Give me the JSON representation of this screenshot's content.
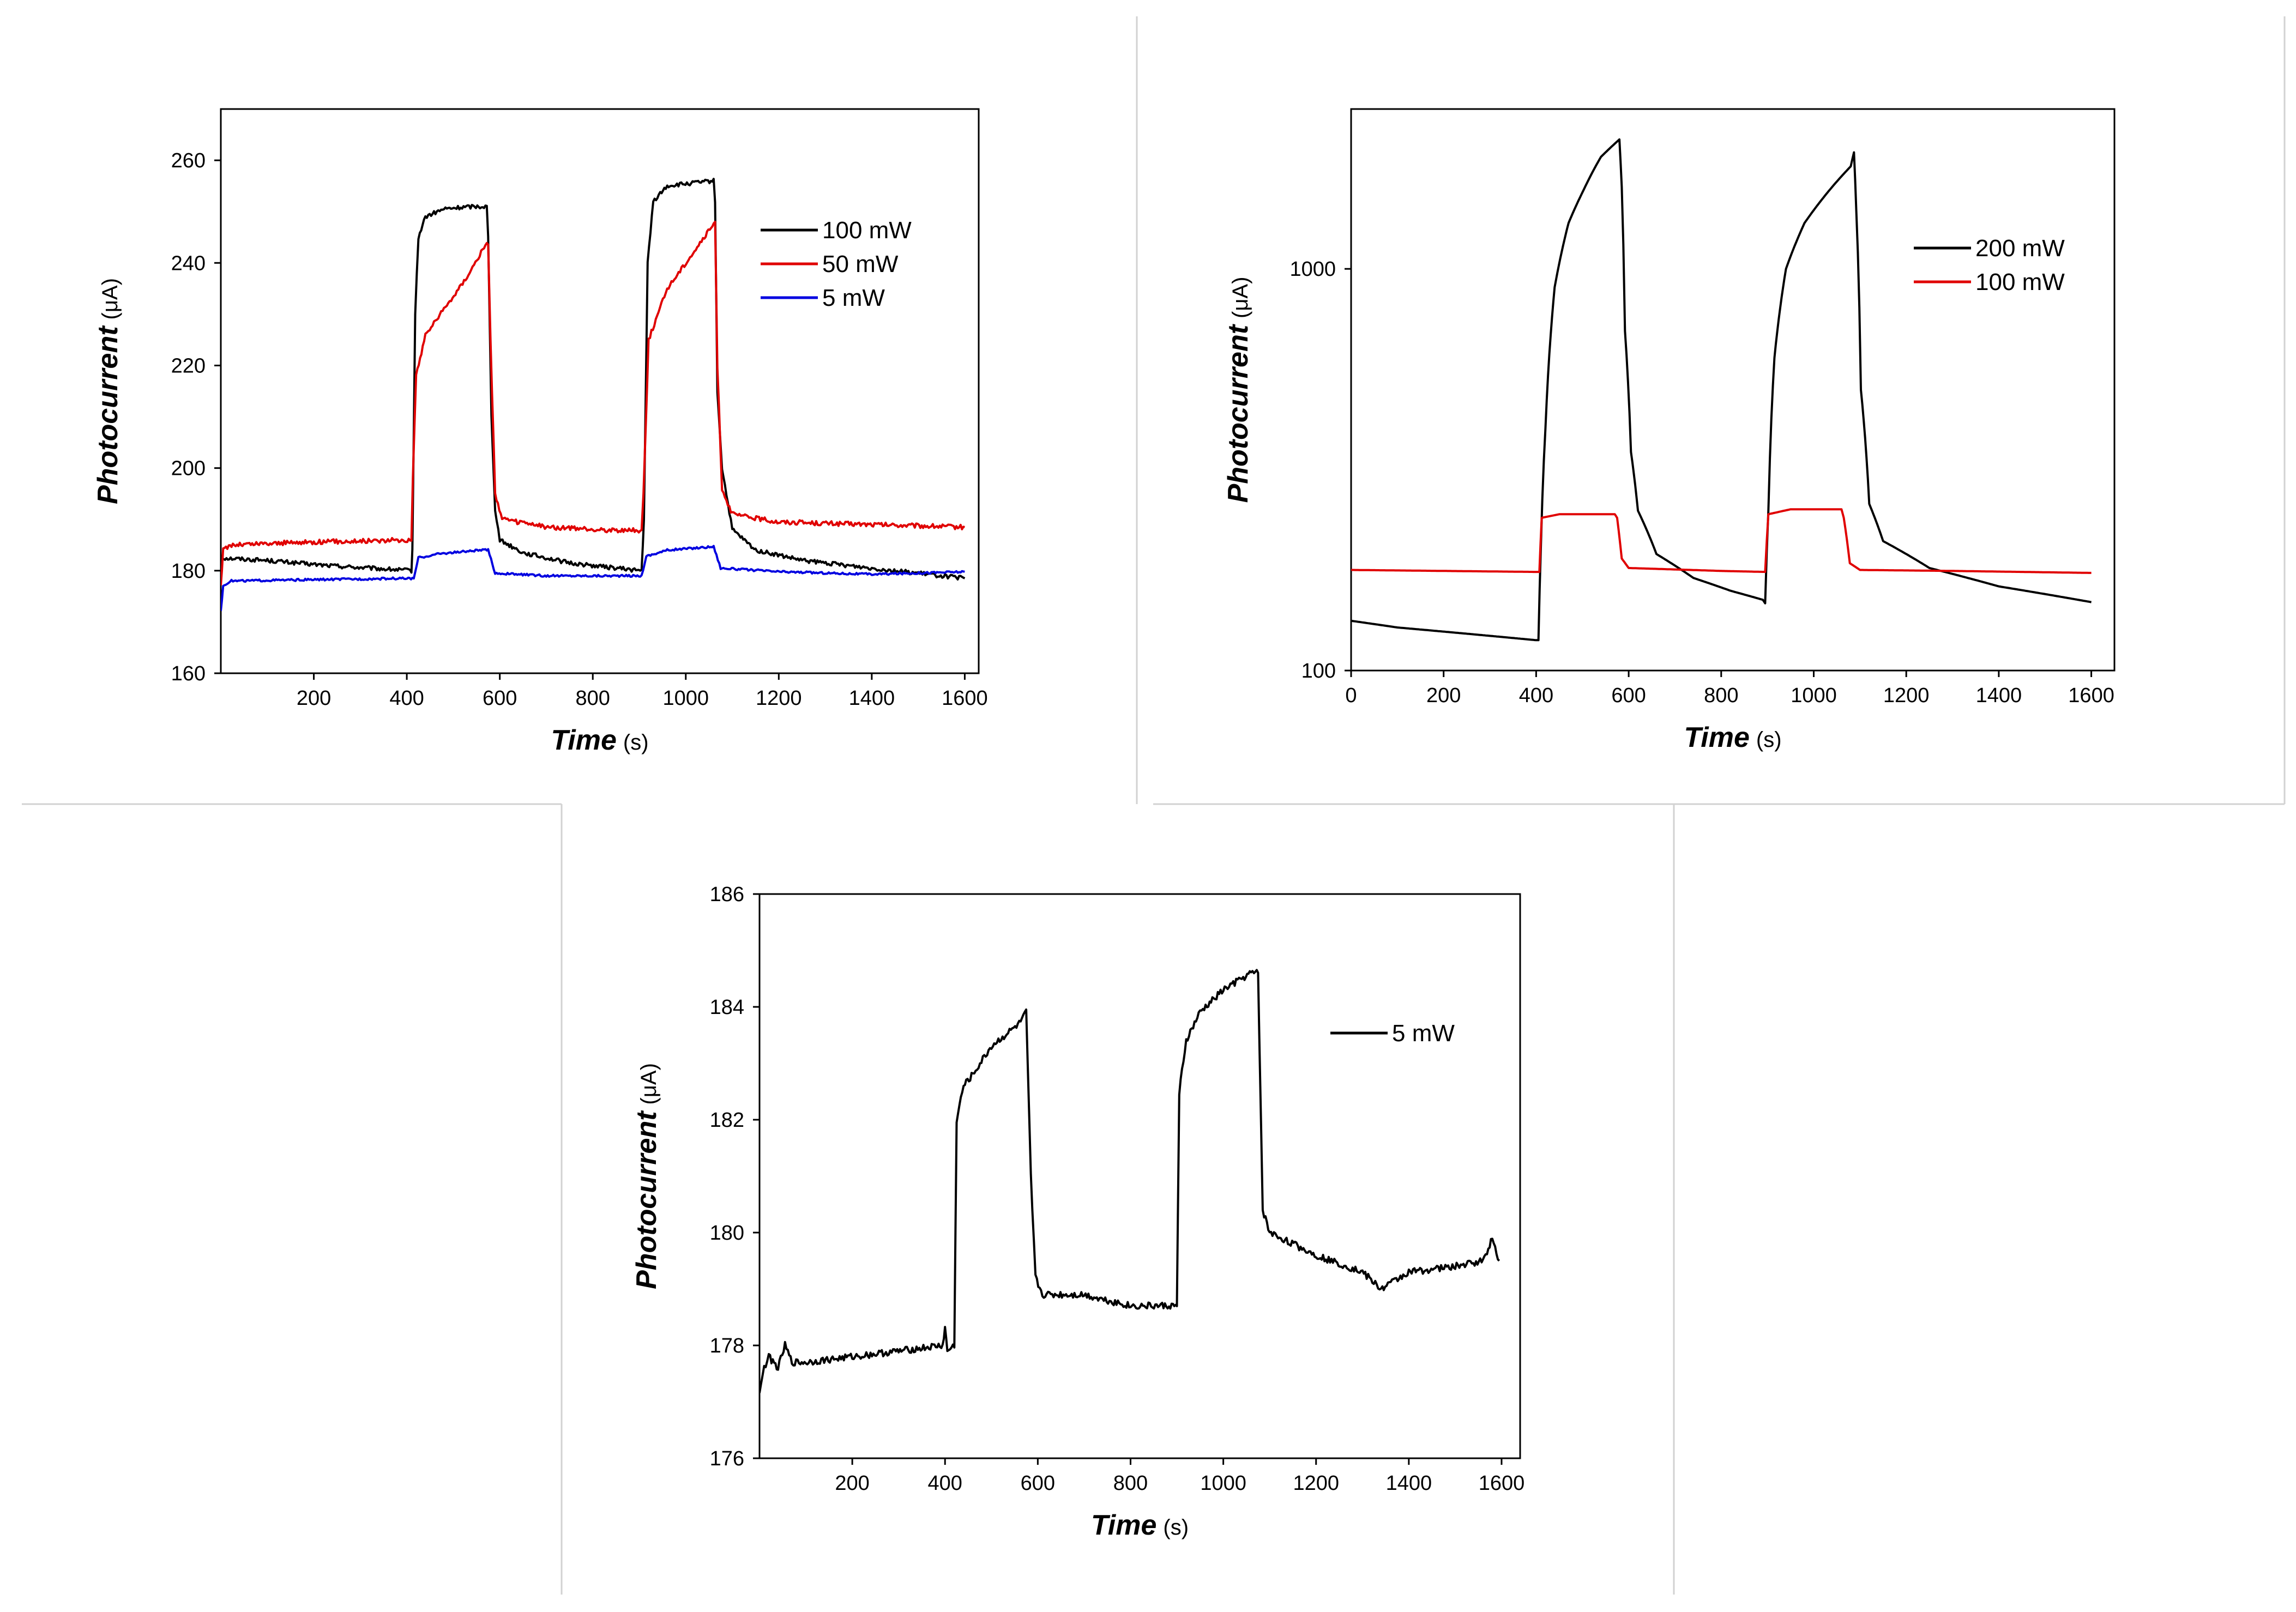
{
  "chart_data": [
    {
      "type": "line",
      "id": "top-left",
      "title": "",
      "xlabel": "Time",
      "xlabel_unit": "(s)",
      "ylabel": "Photocurrent",
      "ylabel_unit": "(μA)",
      "xlim": [
        0,
        1630
      ],
      "ylim": [
        160,
        270
      ],
      "yscale": "linear",
      "xticks": [
        200,
        400,
        600,
        800,
        1000,
        1200,
        1400,
        1600
      ],
      "yticks": [
        160,
        180,
        200,
        220,
        240,
        260
      ],
      "legend_position": "top-right",
      "series": [
        {
          "name": "100 mW",
          "color": "#000000",
          "noise": 0.4,
          "points": [
            [
              0,
              182.5
            ],
            [
              100,
              182
            ],
            [
              200,
              181.2
            ],
            [
              300,
              180.6
            ],
            [
              410,
              180
            ],
            [
              412,
              184
            ],
            [
              418,
              230
            ],
            [
              425,
              245
            ],
            [
              440,
              249
            ],
            [
              480,
              250.5
            ],
            [
              540,
              251
            ],
            [
              572,
              251
            ],
            [
              575,
              245
            ],
            [
              582,
              210
            ],
            [
              590,
              192
            ],
            [
              600,
              186
            ],
            [
              650,
              183.5
            ],
            [
              750,
              181.5
            ],
            [
              850,
              180.5
            ],
            [
              905,
              180
            ],
            [
              910,
              190
            ],
            [
              918,
              240
            ],
            [
              930,
              252
            ],
            [
              960,
              255
            ],
            [
              1060,
              256
            ],
            [
              1063,
              252
            ],
            [
              1068,
              215
            ],
            [
              1078,
              200
            ],
            [
              1100,
              188
            ],
            [
              1150,
              184
            ],
            [
              1250,
              182
            ],
            [
              1400,
              180.5
            ],
            [
              1500,
              179.5
            ],
            [
              1600,
              178.5
            ]
          ]
        },
        {
          "name": "50 mW",
          "color": "#e00000",
          "noise": 0.45,
          "points": [
            [
              0,
              177
            ],
            [
              5,
              184
            ],
            [
              20,
              185
            ],
            [
              100,
              185.3
            ],
            [
              200,
              185.6
            ],
            [
              300,
              185.8
            ],
            [
              410,
              186
            ],
            [
              413,
              198
            ],
            [
              420,
              218
            ],
            [
              440,
              226
            ],
            [
              480,
              231
            ],
            [
              520,
              236
            ],
            [
              560,
              242
            ],
            [
              575,
              244
            ],
            [
              580,
              225
            ],
            [
              590,
              195
            ],
            [
              605,
              190
            ],
            [
              700,
              188.5
            ],
            [
              800,
              188
            ],
            [
              905,
              187.8
            ],
            [
              909,
              195
            ],
            [
              920,
              225
            ],
            [
              960,
              235
            ],
            [
              1000,
              240
            ],
            [
              1040,
              245
            ],
            [
              1063,
              248
            ],
            [
              1068,
              220
            ],
            [
              1078,
              196
            ],
            [
              1100,
              191
            ],
            [
              1200,
              189.5
            ],
            [
              1400,
              189
            ],
            [
              1600,
              188.5
            ]
          ]
        },
        {
          "name": "5 mW",
          "color": "#0000e0",
          "noise": 0.2,
          "points": [
            [
              0,
              172
            ],
            [
              5,
              177
            ],
            [
              20,
              178
            ],
            [
              400,
              178.5
            ],
            [
              415,
              178.5
            ],
            [
              425,
              182.5
            ],
            [
              470,
              183.3
            ],
            [
              560,
              184
            ],
            [
              575,
              184
            ],
            [
              590,
              179.5
            ],
            [
              700,
              179
            ],
            [
              905,
              179
            ],
            [
              915,
              182.8
            ],
            [
              960,
              184
            ],
            [
              1060,
              184.7
            ],
            [
              1075,
              180.5
            ],
            [
              1200,
              179.8
            ],
            [
              1400,
              179.3
            ],
            [
              1600,
              179.8
            ]
          ]
        }
      ]
    },
    {
      "type": "line",
      "id": "top-right",
      "title": "",
      "xlabel": "Time",
      "xlabel_unit": "(s)",
      "ylabel": "Photocurrent",
      "ylabel_unit": "(μA)",
      "xlim": [
        0,
        1650
      ],
      "ylim": [
        100,
        2500
      ],
      "yscale": "log",
      "xticks": [
        0,
        200,
        400,
        600,
        800,
        1000,
        1200,
        1400,
        1600
      ],
      "yticks": [
        100,
        1000
      ],
      "legend_position": "top-right",
      "series": [
        {
          "name": "200 mW",
          "color": "#000000",
          "noise": 0,
          "points": [
            [
              0,
              133
            ],
            [
              100,
              128
            ],
            [
              200,
              125
            ],
            [
              300,
              122
            ],
            [
              400,
              119
            ],
            [
              405,
              119
            ],
            [
              410,
              200
            ],
            [
              420,
              400
            ],
            [
              440,
              900
            ],
            [
              470,
              1300
            ],
            [
              500,
              1550
            ],
            [
              540,
              1900
            ],
            [
              570,
              2050
            ],
            [
              580,
              2100
            ],
            [
              585,
              1600
            ],
            [
              592,
              700
            ],
            [
              605,
              350
            ],
            [
              620,
              250
            ],
            [
              660,
              195
            ],
            [
              740,
              170
            ],
            [
              820,
              158
            ],
            [
              890,
              150
            ],
            [
              895,
              147
            ],
            [
              902,
              250
            ],
            [
              915,
              600
            ],
            [
              940,
              1000
            ],
            [
              980,
              1300
            ],
            [
              1030,
              1550
            ],
            [
              1080,
              1800
            ],
            [
              1087,
              1950
            ],
            [
              1092,
              1400
            ],
            [
              1102,
              500
            ],
            [
              1120,
              260
            ],
            [
              1150,
              210
            ],
            [
              1250,
              180
            ],
            [
              1400,
              162
            ],
            [
              1600,
              148
            ]
          ]
        },
        {
          "name": "100 mW",
          "color": "#e00000",
          "noise": 0,
          "points": [
            [
              0,
              178
            ],
            [
              200,
              177
            ],
            [
              400,
              176
            ],
            [
              407,
              176
            ],
            [
              412,
              240
            ],
            [
              450,
              245
            ],
            [
              570,
              245
            ],
            [
              575,
              240
            ],
            [
              585,
              190
            ],
            [
              600,
              180
            ],
            [
              800,
              177
            ],
            [
              895,
              176
            ],
            [
              902,
              245
            ],
            [
              950,
              252
            ],
            [
              1060,
              252
            ],
            [
              1065,
              240
            ],
            [
              1078,
              185
            ],
            [
              1100,
              178
            ],
            [
              1300,
              177
            ],
            [
              1600,
              175
            ]
          ]
        }
      ]
    },
    {
      "type": "line",
      "id": "bottom",
      "title": "",
      "xlabel": "Time",
      "xlabel_unit": "(s)",
      "ylabel": "Photocurrent",
      "ylabel_unit": "(μA)",
      "xlim": [
        0,
        1640
      ],
      "ylim": [
        176,
        186
      ],
      "yscale": "linear",
      "xticks": [
        200,
        400,
        600,
        800,
        1000,
        1200,
        1400,
        1600
      ],
      "yticks": [
        176,
        178,
        180,
        182,
        184,
        186
      ],
      "legend_position": "top-right",
      "series": [
        {
          "name": "5 mW",
          "color": "#000000",
          "noise": 0.06,
          "points": [
            [
              0,
              177.2
            ],
            [
              10,
              177.6
            ],
            [
              20,
              177.8
            ],
            [
              40,
              177.6
            ],
            [
              55,
              178
            ],
            [
              70,
              177.7
            ],
            [
              100,
              177.7
            ],
            [
              200,
              177.8
            ],
            [
              300,
              177.9
            ],
            [
              395,
              178
            ],
            [
              400,
              178.3
            ],
            [
              405,
              177.9
            ],
            [
              420,
              178
            ],
            [
              425,
              182
            ],
            [
              440,
              182.6
            ],
            [
              460,
              182.8
            ],
            [
              500,
              183.3
            ],
            [
              560,
              183.7
            ],
            [
              575,
              183.9
            ],
            [
              585,
              181
            ],
            [
              595,
              179.2
            ],
            [
              610,
              178.9
            ],
            [
              700,
              178.9
            ],
            [
              800,
              178.7
            ],
            [
              880,
              178.7
            ],
            [
              900,
              178.7
            ],
            [
              905,
              182.5
            ],
            [
              920,
              183.4
            ],
            [
              950,
              183.9
            ],
            [
              1000,
              184.3
            ],
            [
              1040,
              184.5
            ],
            [
              1060,
              184.6
            ],
            [
              1075,
              184.6
            ],
            [
              1085,
              180.4
            ],
            [
              1100,
              180
            ],
            [
              1200,
              179.6
            ],
            [
              1300,
              179.3
            ],
            [
              1340,
              179
            ],
            [
              1400,
              179.3
            ],
            [
              1500,
              179.4
            ],
            [
              1560,
              179.5
            ],
            [
              1580,
              179.9
            ],
            [
              1595,
              179.5
            ]
          ]
        }
      ]
    }
  ]
}
